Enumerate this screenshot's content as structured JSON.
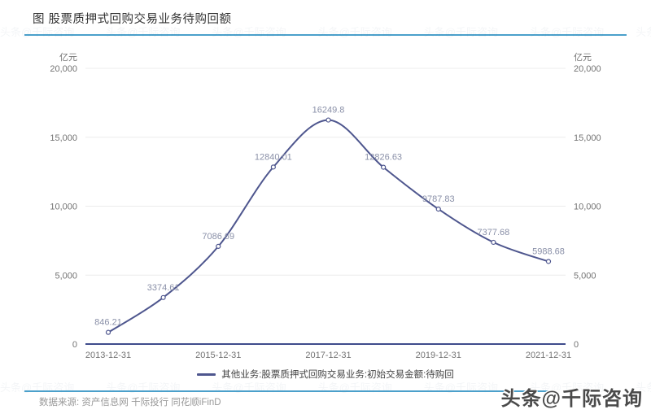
{
  "header": {
    "title": "图 股票质押式回购交易业务待购回额"
  },
  "chart_data": {
    "type": "line",
    "title": "股票质押式回购交易业务待购回额",
    "unit_left": "亿元",
    "unit_right": "亿元",
    "x": [
      "2013-12-31",
      "2014-12-31",
      "2015-12-31",
      "2016-12-31",
      "2017-12-31",
      "2018-12-31",
      "2019-12-31",
      "2020-12-31",
      "2021-12-31"
    ],
    "values": [
      846.21,
      3374.61,
      7086.69,
      12840.01,
      16249.8,
      12826.63,
      9787.83,
      7377.68,
      5988.68
    ],
    "point_labels": [
      "846.21",
      "3374.61",
      "7086.69",
      "12840.01",
      "16249.8",
      "12826.63",
      "9787.83",
      "7377.68",
      "5988.68"
    ],
    "x_tick_labels": [
      "2013-12-31",
      "2015-12-31",
      "2017-12-31",
      "2019-12-31",
      "2021-12-31"
    ],
    "y_ticks": [
      "0",
      "5,000",
      "10,000",
      "15,000",
      "20,000"
    ],
    "y_tick_values": [
      0,
      5000,
      10000,
      15000,
      20000
    ],
    "ylim": [
      0,
      20000
    ],
    "grid": true,
    "legend": {
      "position": "bottom",
      "series_name": "其他业务:股票质押式回购交易业务:初始交易金额:待购回"
    },
    "colors": {
      "line": "#4e568e",
      "marker_fill": "#ffffff",
      "point_label": "#8a90a8",
      "grid": "#ececec",
      "axis": "#3f4c8c",
      "tick_text": "#737373"
    }
  },
  "footer": {
    "source": "数据来源: 资产信息网 千际投行 同花顺iFinD"
  },
  "watermark": {
    "text": "头条@千际咨询"
  },
  "accent": {
    "rule_color": "#4ba0cb"
  }
}
